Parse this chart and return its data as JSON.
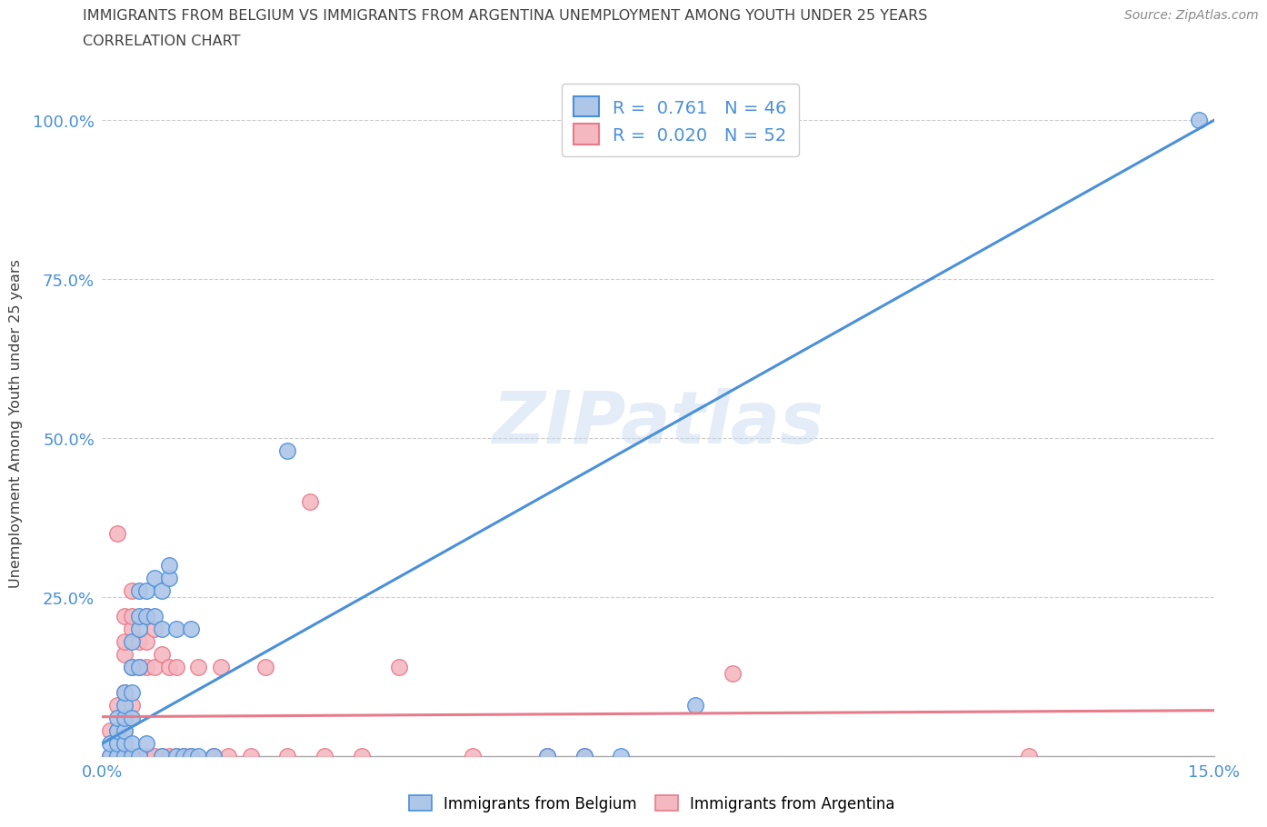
{
  "title_line1": "IMMIGRANTS FROM BELGIUM VS IMMIGRANTS FROM ARGENTINA UNEMPLOYMENT AMONG YOUTH UNDER 25 YEARS",
  "title_line2": "CORRELATION CHART",
  "source": "Source: ZipAtlas.com",
  "ylabel": "Unemployment Among Youth under 25 years",
  "xlim": [
    0.0,
    0.15
  ],
  "ylim": [
    0.0,
    1.05
  ],
  "xticks": [
    0.0,
    0.025,
    0.05,
    0.075,
    0.1,
    0.125,
    0.15
  ],
  "xticklabels": [
    "0.0%",
    "",
    "",
    "",
    "",
    "",
    "15.0%"
  ],
  "yticks": [
    0.0,
    0.25,
    0.5,
    0.75,
    1.0
  ],
  "yticklabels": [
    "",
    "25.0%",
    "50.0%",
    "75.0%",
    "100.0%"
  ],
  "legend_belgium": {
    "R": "0.761",
    "N": "46",
    "color": "#aec6e8"
  },
  "legend_argentina": {
    "R": "0.020",
    "N": "52",
    "color": "#f4b8c1"
  },
  "belgium_color": "#aec6e8",
  "argentina_color": "#f4b8c1",
  "belgium_line_color": "#4a90d9",
  "argentina_line_color": "#e87a8a",
  "watermark": "ZIPatlas",
  "belgium_line": [
    0.0,
    0.02,
    0.15,
    1.0
  ],
  "argentina_line": [
    0.0,
    0.062,
    0.15,
    0.072
  ],
  "belgium_points": [
    [
      0.001,
      0.0
    ],
    [
      0.001,
      0.02
    ],
    [
      0.002,
      0.0
    ],
    [
      0.002,
      0.02
    ],
    [
      0.002,
      0.04
    ],
    [
      0.002,
      0.06
    ],
    [
      0.003,
      0.0
    ],
    [
      0.003,
      0.02
    ],
    [
      0.003,
      0.04
    ],
    [
      0.003,
      0.06
    ],
    [
      0.003,
      0.08
    ],
    [
      0.003,
      0.1
    ],
    [
      0.004,
      0.0
    ],
    [
      0.004,
      0.02
    ],
    [
      0.004,
      0.06
    ],
    [
      0.004,
      0.1
    ],
    [
      0.004,
      0.14
    ],
    [
      0.004,
      0.18
    ],
    [
      0.005,
      0.0
    ],
    [
      0.005,
      0.14
    ],
    [
      0.005,
      0.2
    ],
    [
      0.005,
      0.22
    ],
    [
      0.005,
      0.26
    ],
    [
      0.006,
      0.02
    ],
    [
      0.006,
      0.22
    ],
    [
      0.006,
      0.26
    ],
    [
      0.007,
      0.22
    ],
    [
      0.007,
      0.28
    ],
    [
      0.008,
      0.0
    ],
    [
      0.008,
      0.2
    ],
    [
      0.008,
      0.26
    ],
    [
      0.009,
      0.28
    ],
    [
      0.009,
      0.3
    ],
    [
      0.01,
      0.0
    ],
    [
      0.01,
      0.2
    ],
    [
      0.011,
      0.0
    ],
    [
      0.012,
      0.0
    ],
    [
      0.012,
      0.2
    ],
    [
      0.013,
      0.0
    ],
    [
      0.025,
      0.48
    ],
    [
      0.015,
      0.0
    ],
    [
      0.06,
      0.0
    ],
    [
      0.065,
      0.0
    ],
    [
      0.07,
      0.0
    ],
    [
      0.08,
      0.08
    ],
    [
      0.148,
      1.0
    ]
  ],
  "argentina_points": [
    [
      0.001,
      0.0
    ],
    [
      0.001,
      0.04
    ],
    [
      0.002,
      0.0
    ],
    [
      0.002,
      0.04
    ],
    [
      0.002,
      0.08
    ],
    [
      0.002,
      0.35
    ],
    [
      0.003,
      0.0
    ],
    [
      0.003,
      0.04
    ],
    [
      0.003,
      0.1
    ],
    [
      0.003,
      0.16
    ],
    [
      0.003,
      0.18
    ],
    [
      0.003,
      0.22
    ],
    [
      0.004,
      0.0
    ],
    [
      0.004,
      0.08
    ],
    [
      0.004,
      0.14
    ],
    [
      0.004,
      0.2
    ],
    [
      0.004,
      0.22
    ],
    [
      0.004,
      0.26
    ],
    [
      0.005,
      0.0
    ],
    [
      0.005,
      0.14
    ],
    [
      0.005,
      0.18
    ],
    [
      0.006,
      0.0
    ],
    [
      0.006,
      0.14
    ],
    [
      0.006,
      0.18
    ],
    [
      0.006,
      0.22
    ],
    [
      0.007,
      0.0
    ],
    [
      0.007,
      0.14
    ],
    [
      0.007,
      0.2
    ],
    [
      0.008,
      0.0
    ],
    [
      0.008,
      0.16
    ],
    [
      0.009,
      0.0
    ],
    [
      0.009,
      0.14
    ],
    [
      0.01,
      0.0
    ],
    [
      0.01,
      0.14
    ],
    [
      0.011,
      0.0
    ],
    [
      0.012,
      0.0
    ],
    [
      0.013,
      0.14
    ],
    [
      0.015,
      0.0
    ],
    [
      0.016,
      0.14
    ],
    [
      0.017,
      0.0
    ],
    [
      0.02,
      0.0
    ],
    [
      0.022,
      0.14
    ],
    [
      0.025,
      0.0
    ],
    [
      0.028,
      0.4
    ],
    [
      0.03,
      0.0
    ],
    [
      0.035,
      0.0
    ],
    [
      0.04,
      0.14
    ],
    [
      0.05,
      0.0
    ],
    [
      0.06,
      0.0
    ],
    [
      0.065,
      0.0
    ],
    [
      0.085,
      0.13
    ],
    [
      0.125,
      0.0
    ]
  ],
  "background_color": "#ffffff",
  "grid_color": "#cccccc",
  "title_color": "#404040",
  "axis_color": "#aaaaaa",
  "tick_color": "#4a90d9"
}
